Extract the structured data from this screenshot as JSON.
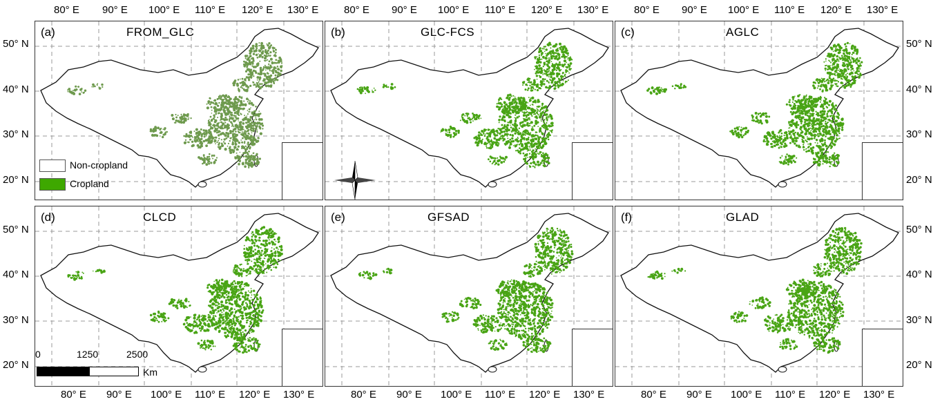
{
  "top_axis": [
    "80° E",
    "90° E",
    "100° E",
    "110° E",
    "120° E",
    "130° E"
  ],
  "bottom_axis": [
    "80° E",
    "90° E",
    "100° E",
    "110° E",
    "120° E",
    "130° E"
  ],
  "left_axis_top": [
    "50° N",
    "40° N",
    "30° N",
    "20° N"
  ],
  "left_axis_bottom": [
    "50° N",
    "40° N",
    "30° N",
    "20° N"
  ],
  "right_axis_top": [
    "50° N",
    "40° N",
    "30° N",
    "20° N"
  ],
  "right_axis_bottom": [
    "50° N",
    "40° N",
    "30° N",
    "20° N"
  ],
  "panels": [
    {
      "letter": "(a)",
      "title": "FROM_GLC",
      "crop_color": "#6e9a4e"
    },
    {
      "letter": "(b)",
      "title": "GLC-FCS",
      "crop_color": "#49a415"
    },
    {
      "letter": "(c)",
      "title": "AGLC",
      "crop_color": "#49a415"
    },
    {
      "letter": "(d)",
      "title": "CLCD",
      "crop_color": "#49a415"
    },
    {
      "letter": "(e)",
      "title": "GFSAD",
      "crop_color": "#49a415"
    },
    {
      "letter": "(f)",
      "title": "GLAD",
      "crop_color": "#49a415"
    }
  ],
  "legend": {
    "non_cropland": "Non-cropland",
    "cropland": "Cropland",
    "non_cropland_color": "#ffffff",
    "cropland_color": "#3ea800"
  },
  "north_arrow": {
    "label": "N"
  },
  "scale_bar": {
    "ticks": [
      "0",
      "1250",
      "2500"
    ],
    "unit": "Km"
  }
}
